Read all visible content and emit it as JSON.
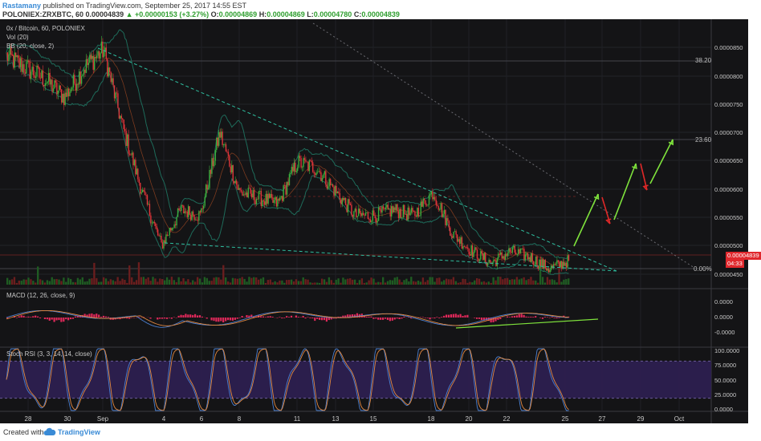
{
  "header": {
    "author": "Rastamany",
    "published": "published on TradingView.com, September 25, 2017 14:55 EST",
    "symbol": "POLONIEX:ZRXBTC, 60",
    "price": "0.00004839",
    "change": "▲ +0.00000153 (+3.27%)",
    "o_label": "O:",
    "o": "0.00004869",
    "h_label": "H:",
    "h": "0.00004869",
    "l_label": "L:",
    "l": "0.00004780",
    "c_label": "C:",
    "c": "0.00004839"
  },
  "legend": {
    "title": "0x / Bitcoin, 60, POLONIEX",
    "vol": "Vol (20)",
    "bb": "BB (20, close, 2)",
    "macd": "MACD (12, 26, close, 9)",
    "stoch": "Stoch RSI (3, 3, 14, 14, close)"
  },
  "fib_labels": {
    "f1": "38.20",
    "f2": "23.60",
    "f3": "0.00%"
  },
  "price_badge": "0.00004839",
  "time_badge": "04:33",
  "footer": {
    "created": "Created with",
    "brand": "TradingView"
  },
  "colors": {
    "bg": "#141416",
    "up": "#3cae3c",
    "down": "#e0353a",
    "trend": "#2fbfa0",
    "bb": "#1e6b5a",
    "macd": "#4a7fd0",
    "signal": "#e28840",
    "hist": "#e0285a",
    "stoch_k": "#4a7fd0",
    "stoch_d": "#e28840",
    "stoch_band": "#2e1f52",
    "arrow_up": "#7fe33c",
    "arrow_down": "#e02828"
  },
  "chart_data": {
    "type": "line",
    "main": {
      "yticks": [
        "0.0000850",
        "0.0000800",
        "0.0000750",
        "0.0000700",
        "0.0000650",
        "0.0000600",
        "0.0000550",
        "0.0000500",
        "0.0000450"
      ],
      "ylim": [
        4.38e-05,
        8.92e-05
      ],
      "xticks": [
        "28",
        "30",
        "Sep",
        "4",
        "6",
        "8",
        "11",
        "13",
        "15",
        "18",
        "20",
        "22",
        "25",
        "27",
        "29",
        "Oct"
      ],
      "series_close": [
        {
          "x": "Aug 27",
          "y": 8.3e-05
        },
        {
          "x": "Aug 28",
          "y": 8.1e-05
        },
        {
          "x": "Aug 29",
          "y": 7.9e-05
        },
        {
          "x": "Aug 30",
          "y": 7.6e-05
        },
        {
          "x": "Aug 31",
          "y": 8.1e-05
        },
        {
          "x": "Sep 1",
          "y": 8.4e-05
        },
        {
          "x": "Sep 2",
          "y": 7.1e-05
        },
        {
          "x": "Sep 3",
          "y": 6e-05
        },
        {
          "x": "Sep 4",
          "y": 5.1e-05
        },
        {
          "x": "Sep 5",
          "y": 5.7e-05
        },
        {
          "x": "Sep 6",
          "y": 5.6e-05
        },
        {
          "x": "Sep 7",
          "y": 7e-05
        },
        {
          "x": "Sep 8",
          "y": 6e-05
        },
        {
          "x": "Sep 9",
          "y": 5.9e-05
        },
        {
          "x": "Sep 10",
          "y": 5.8e-05
        },
        {
          "x": "Sep 11",
          "y": 6.5e-05
        },
        {
          "x": "Sep 12",
          "y": 6.4e-05
        },
        {
          "x": "Sep 13",
          "y": 6e-05
        },
        {
          "x": "Sep 14",
          "y": 5.6e-05
        },
        {
          "x": "Sep 15",
          "y": 5.6e-05
        },
        {
          "x": "Sep 16",
          "y": 5.7e-05
        },
        {
          "x": "Sep 17",
          "y": 5.6e-05
        },
        {
          "x": "Sep 18",
          "y": 6e-05
        },
        {
          "x": "Sep 19",
          "y": 5.3e-05
        },
        {
          "x": "Sep 20",
          "y": 5e-05
        },
        {
          "x": "Sep 21",
          "y": 4.8e-05
        },
        {
          "x": "Sep 22",
          "y": 5e-05
        },
        {
          "x": "Sep 23",
          "y": 4.9e-05
        },
        {
          "x": "Sep 24",
          "y": 4.7e-05
        },
        {
          "x": "Sep 25",
          "y": 4.84e-05
        }
      ]
    },
    "macd": {
      "yticks": [
        "0.0000",
        "0.0000",
        "-0.0000"
      ]
    },
    "stoch_rsi": {
      "yticks": [
        "100.0000",
        "75.0000",
        "50.0000",
        "25.0000",
        "0.0000"
      ],
      "ylim": [
        0,
        100
      ],
      "bands": [
        20,
        80
      ]
    }
  }
}
